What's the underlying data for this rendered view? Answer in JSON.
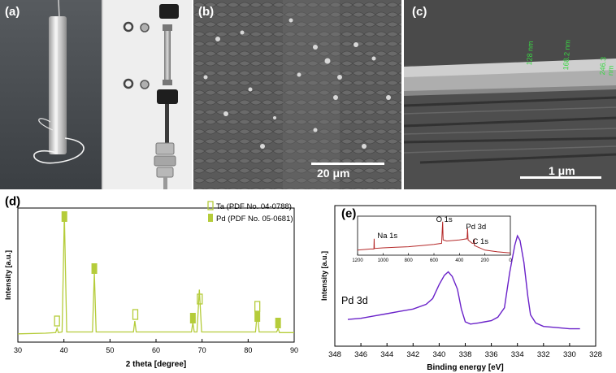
{
  "panels": {
    "a": {
      "label": "(a)"
    },
    "b": {
      "label": "(b)",
      "scale_bar": "20 μm"
    },
    "c": {
      "label": "(c)",
      "scale_bar": "1 μm",
      "thickness_labels": [
        "128 nm",
        "168.2 nm",
        "246.3 nm"
      ]
    },
    "d": {
      "label": "(d)"
    },
    "e": {
      "label": "(e)",
      "annotation": "Pd 3d"
    }
  },
  "chart_data": [
    {
      "type": "line",
      "panel": "d",
      "xlabel": "2 theta [degree]",
      "ylabel": "Intensity [a.u.]",
      "xlim": [
        30,
        90
      ],
      "xticks": [
        30,
        40,
        50,
        60,
        70,
        80,
        90
      ],
      "line_color": "#b5cc3a",
      "legend_position": "top-right",
      "series": [
        {
          "name": "Ta (PDF No. 04-0788)",
          "marker": "open-square",
          "color": "#b5cc3a",
          "peaks_2theta": [
            38.5,
            55.5,
            69.5,
            82.0
          ]
        },
        {
          "name": "Pd (PDF No. 05-0681)",
          "marker": "filled-square",
          "color": "#b5cc3a",
          "peaks_2theta": [
            40.1,
            46.6,
            68.0,
            82.0,
            86.5
          ]
        }
      ],
      "pattern": {
        "x": [
          30,
          36,
          38.2,
          38.5,
          38.8,
          39.6,
          40.1,
          40.6,
          46.2,
          46.6,
          47.0,
          55.1,
          55.4,
          55.7,
          67.7,
          68.0,
          68.3,
          68.9,
          69.4,
          69.9,
          81.6,
          82.0,
          82.4,
          86.2,
          86.5,
          86.8,
          90
        ],
        "y": [
          1.5,
          2,
          2.5,
          6,
          2.5,
          3,
          100,
          3,
          3,
          52,
          3,
          3,
          12,
          3,
          3,
          11,
          3,
          3,
          38,
          3,
          3,
          20,
          3,
          3,
          6,
          2.5,
          2.5
        ]
      }
    },
    {
      "type": "line",
      "panel": "e",
      "xlabel": "Binding energy [eV]",
      "ylabel": "Intensity [a.u.]",
      "xlim": [
        348,
        328
      ],
      "xticks": [
        348,
        346,
        344,
        342,
        340,
        338,
        336,
        334,
        332,
        330,
        328
      ],
      "line_color": "#6a22c9",
      "pattern": {
        "x": [
          347,
          346,
          345,
          344,
          343,
          342,
          341,
          340.5,
          340,
          339.6,
          339.3,
          339,
          338.6,
          338.3,
          338,
          337.6,
          337,
          336.5,
          336,
          335.5,
          335,
          334.6,
          334.2,
          334,
          333.8,
          333.5,
          333.2,
          333,
          332.6,
          332,
          331,
          330,
          329.2
        ],
        "y": [
          16,
          17,
          19,
          21,
          23,
          25,
          29,
          34,
          46,
          54,
          57,
          53,
          42,
          25,
          14,
          12,
          13,
          14,
          15,
          18,
          26,
          56,
          80,
          88,
          84,
          65,
          36,
          20,
          13,
          10,
          9,
          8,
          8
        ]
      },
      "inset": {
        "type": "line",
        "xlim": [
          1200,
          0
        ],
        "xticks": [
          1200,
          1000,
          800,
          600,
          400,
          200,
          0
        ],
        "line_color": "#b52a2a",
        "annotations": [
          "Na 1s",
          "O 1s",
          "Pd 3d",
          "C 1s"
        ],
        "pattern": {
          "x": [
            1200,
            1100,
            1072,
            1070,
            1068,
            1000,
            900,
            800,
            700,
            600,
            540,
            532,
            528,
            500,
            400,
            340,
            336,
            332,
            300,
            286,
            284,
            282,
            200,
            100,
            0
          ],
          "y": [
            3,
            4,
            4,
            13,
            4.5,
            5,
            5.5,
            6,
            7,
            8,
            9,
            28,
            12,
            11,
            12,
            13,
            22,
            12,
            9,
            9,
            13,
            7,
            3,
            1.5,
            0.5
          ]
        }
      }
    }
  ]
}
